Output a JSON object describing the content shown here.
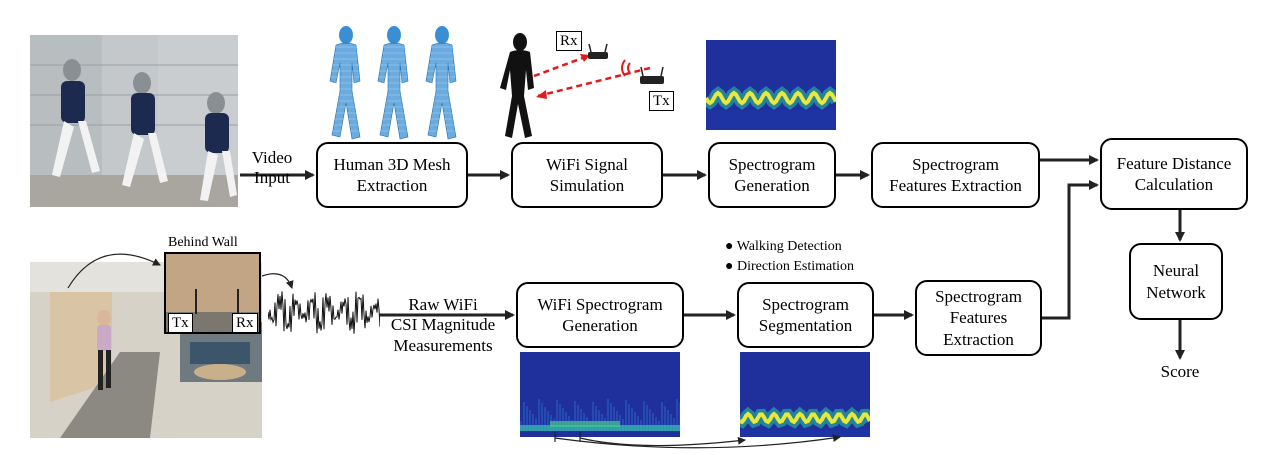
{
  "top": {
    "input_label": "Video\nInput",
    "boxes": [
      "Human 3D Mesh\nExtraction",
      "WiFi Signal\nSimulation",
      "Spectrogram\nGeneration",
      "Spectrogram\nFeatures Extraction"
    ],
    "rx_label": "Rx",
    "tx_label": "Tx"
  },
  "bottom": {
    "wall_label": "Behind Wall",
    "tx_label": "Tx",
    "rx_label": "Rx",
    "input_label": "Raw WiFi\nCSI Magnitude\nMeasurements",
    "boxes": [
      "WiFi Spectrogram\nGeneration",
      "Spectrogram\nSegmentation",
      "Spectrogram\nFeatures\nExtraction"
    ],
    "bullets": [
      "Walking Detection",
      "Direction Estimation"
    ]
  },
  "right": {
    "feature_box": "Feature Distance\nCalculation",
    "nn_box": "Neural\nNetwork",
    "output_label": "Score"
  },
  "colors": {
    "spectrogram_bg": "#1f2f9c",
    "spectrogram_band": "#e6e83a",
    "mesh": "#3a8fd4",
    "signal_arrow": "#e11b1b"
  }
}
